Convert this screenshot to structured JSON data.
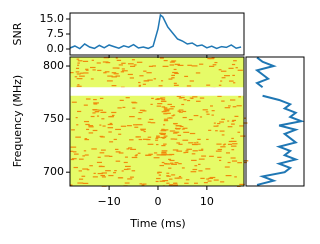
{
  "chart_data": [
    {
      "type": "line",
      "ylabel": "SNR",
      "x": [
        -18,
        -17,
        -16,
        -15,
        -14,
        -13,
        -12,
        -11,
        -10,
        -9,
        -8,
        -7,
        -6,
        -5,
        -4,
        -3,
        -2,
        -1,
        0,
        0.5,
        1,
        2,
        3,
        4,
        5,
        6,
        7,
        8,
        9,
        10,
        11,
        12,
        13,
        14,
        15,
        16,
        17
      ],
      "series": [
        {
          "color": "#1f77b4",
          "values": [
            0.5,
            1.5,
            0.2,
            2.5,
            1.0,
            0.3,
            1.8,
            0.6,
            2.0,
            1.2,
            0.4,
            1.6,
            0.9,
            2.2,
            0.5,
            1.0,
            0.3,
            1.4,
            10,
            17,
            16,
            11,
            8,
            5,
            4,
            2.5,
            3,
            1.5,
            2,
            0.6,
            1.4,
            0.3,
            1.2,
            0.8,
            2.0,
            0.4,
            1.0
          ]
        }
      ],
      "xlim": [
        -18,
        17.6
      ],
      "ylim": [
        -3,
        18
      ],
      "yticks": [
        {
          "value": 0,
          "label": "0.0"
        },
        7.5,
        {
          "value": 15,
          "label": "15.0"
        }
      ]
    },
    {
      "type": "heatmap",
      "xlabel": "Time (ms)",
      "ylabel": "Frequency (MHz)",
      "xlim": [
        -18,
        17.6
      ],
      "ylim": [
        687,
        808.5
      ],
      "xticks": [
        {
          "value": -10,
          "label": "−10"
        },
        0,
        10
      ],
      "yticks": [
        700,
        750,
        800
      ],
      "colors": [
        "#e6fb68",
        "#f08a0c"
      ]
    },
    {
      "type": "spectrum",
      "x": [
        688,
        692,
        696,
        700,
        704,
        708,
        712,
        716,
        720,
        724,
        728,
        732,
        736,
        740,
        744,
        748,
        752,
        756,
        760,
        764,
        768,
        772,
        776,
        780,
        784,
        788,
        792,
        796,
        800,
        804,
        808
      ],
      "values": [
        2,
        5,
        3,
        7,
        8,
        6,
        9,
        7,
        8,
        6,
        9,
        8,
        7,
        9,
        6,
        10,
        8,
        9,
        7,
        8,
        6,
        3,
        null,
        3,
        2,
        4,
        3,
        2,
        5,
        3,
        2
      ],
      "color": "#1f77b4",
      "xlim": [
        0,
        10.5
      ],
      "ylim": [
        687,
        808.5
      ]
    }
  ]
}
